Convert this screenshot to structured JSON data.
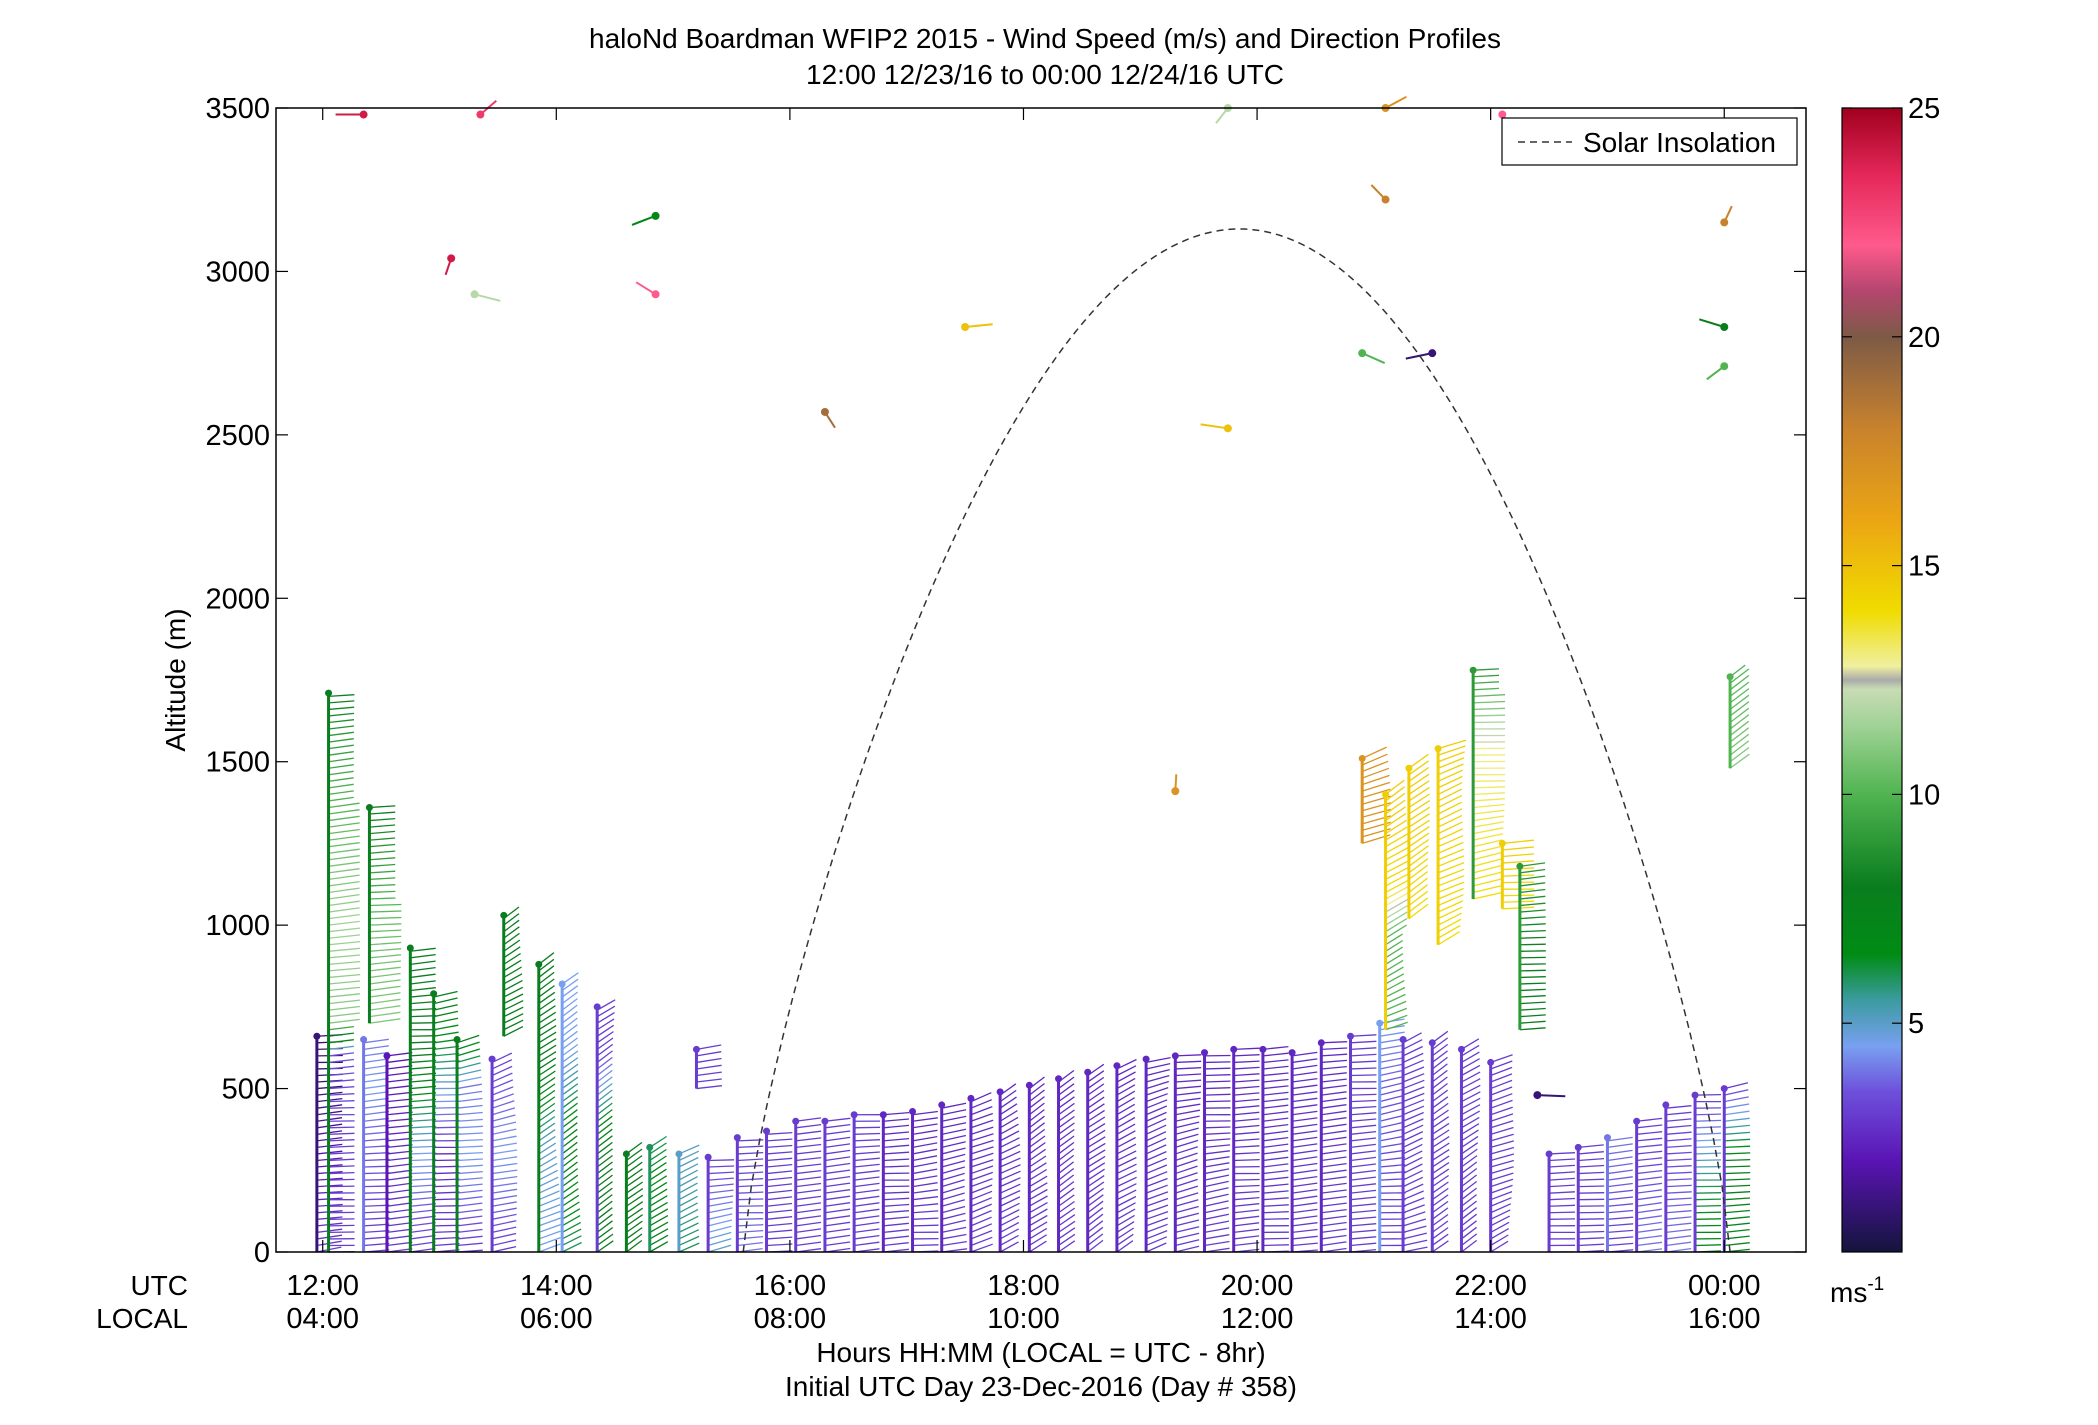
{
  "chart_data": {
    "type": "barb-profile",
    "title": "haloNd Boardman WFIP2 2015 - Wind Speed (m/s) and Direction Profiles",
    "subtitle": "12:00 12/23/16 to 00:00 12/24/16  UTC",
    "xlabel": "Hours HH:MM  (LOCAL = UTC - 8hr)",
    "xlabel2": "Initial UTC Day 23-Dec-2016 (Day # 358)",
    "ylabel": "Altitude (m)",
    "xlim": [
      11.6,
      24.7
    ],
    "ylim": [
      0,
      3500
    ],
    "yticks": [
      0,
      500,
      1000,
      1500,
      2000,
      2500,
      3000,
      3500
    ],
    "xticks": [
      {
        "utc_hour": 12,
        "utc": "12:00",
        "local": "04:00"
      },
      {
        "utc_hour": 14,
        "utc": "14:00",
        "local": "06:00"
      },
      {
        "utc_hour": 16,
        "utc": "16:00",
        "local": "08:00"
      },
      {
        "utc_hour": 18,
        "utc": "18:00",
        "local": "10:00"
      },
      {
        "utc_hour": 20,
        "utc": "20:00",
        "local": "12:00"
      },
      {
        "utc_hour": 22,
        "utc": "22:00",
        "local": "14:00"
      },
      {
        "utc_hour": 24,
        "utc": "00:00",
        "local": "16:00"
      }
    ],
    "row_labels": {
      "utc": "UTC",
      "local": "LOCAL"
    },
    "legend": {
      "entries": [
        "Solar Insolation"
      ],
      "placement": "top-right"
    },
    "solar_insolation": {
      "start_hour": 15.6,
      "peak_hour": 19.85,
      "end_hour": 24.05,
      "peak_altitude": 3130
    },
    "colorbar": {
      "min": 0,
      "max": 25,
      "ticks": [
        5,
        10,
        15,
        20,
        25
      ],
      "unit": "ms",
      "unit_exp": "-1",
      "stops": [
        {
          "v": 0,
          "c": "#14143c"
        },
        {
          "v": 2,
          "c": "#5a14b4"
        },
        {
          "v": 3.5,
          "c": "#6e50dc"
        },
        {
          "v": 4.5,
          "c": "#78a0f0"
        },
        {
          "v": 5.5,
          "c": "#3c9ba0"
        },
        {
          "v": 6.5,
          "c": "#008c14"
        },
        {
          "v": 8,
          "c": "#0a7d1e"
        },
        {
          "v": 10,
          "c": "#50b450"
        },
        {
          "v": 11.5,
          "c": "#a0d296"
        },
        {
          "v": 12.3,
          "c": "#c8dcb4"
        },
        {
          "v": 12.5,
          "c": "#aaaaaa"
        },
        {
          "v": 12.8,
          "c": "#f0f0a0"
        },
        {
          "v": 14,
          "c": "#f0dc00"
        },
        {
          "v": 16,
          "c": "#eba514"
        },
        {
          "v": 18,
          "c": "#c8822d"
        },
        {
          "v": 20,
          "c": "#7d5a46"
        },
        {
          "v": 21,
          "c": "#b4466e"
        },
        {
          "v": 22,
          "c": "#ff5a8c"
        },
        {
          "v": 23.5,
          "c": "#e6285a"
        },
        {
          "v": 25,
          "c": "#a0001e"
        }
      ]
    },
    "columns": [
      {
        "t": 11.95,
        "top": 660,
        "spd": [
          [
            0,
            3
          ],
          [
            300,
            2
          ],
          [
            500,
            1
          ],
          [
            660,
            1
          ]
        ]
      },
      {
        "t": 12.05,
        "top": 1710,
        "spd": [
          [
            0,
            3
          ],
          [
            300,
            3
          ],
          [
            600,
            3.5
          ],
          [
            700,
            11
          ],
          [
            1000,
            11.5
          ],
          [
            1500,
            9.5
          ],
          [
            1710,
            8
          ]
        ]
      },
      {
        "t": 12.35,
        "top": 650,
        "spd": [
          [
            0,
            3
          ],
          [
            300,
            3.5
          ],
          [
            500,
            4.5
          ],
          [
            650,
            4
          ]
        ]
      },
      {
        "t": 12.4,
        "top": 1360,
        "spd": [
          [
            700,
            11
          ],
          [
            1000,
            10.5
          ],
          [
            1360,
            8
          ]
        ]
      },
      {
        "t": 12.55,
        "top": 600,
        "spd": [
          [
            0,
            3
          ],
          [
            300,
            2.5
          ],
          [
            600,
            2
          ]
        ]
      },
      {
        "t": 12.75,
        "top": 930,
        "spd": [
          [
            0,
            3
          ],
          [
            300,
            4.5
          ],
          [
            600,
            8
          ],
          [
            930,
            8
          ]
        ]
      },
      {
        "t": 12.95,
        "top": 790,
        "spd": [
          [
            0,
            3
          ],
          [
            300,
            2.5
          ],
          [
            600,
            6
          ],
          [
            790,
            8
          ]
        ]
      },
      {
        "t": 13.15,
        "top": 650,
        "spd": [
          [
            0,
            3
          ],
          [
            300,
            4.5
          ],
          [
            500,
            4
          ],
          [
            650,
            8
          ]
        ]
      },
      {
        "t": 13.45,
        "top": 590,
        "spd": [
          [
            0,
            3
          ],
          [
            300,
            4.5
          ],
          [
            590,
            3
          ]
        ]
      },
      {
        "t": 13.55,
        "top": 1030,
        "spd": [
          [
            660,
            8
          ],
          [
            1030,
            8
          ]
        ]
      },
      {
        "t": 13.85,
        "top": 880,
        "spd": [
          [
            0,
            4.5
          ],
          [
            300,
            5
          ],
          [
            600,
            8
          ],
          [
            880,
            8
          ]
        ]
      },
      {
        "t": 14.05,
        "top": 820,
        "spd": [
          [
            0,
            6
          ],
          [
            300,
            7.5
          ],
          [
            600,
            4.5
          ],
          [
            820,
            4.5
          ]
        ]
      },
      {
        "t": 14.35,
        "top": 750,
        "spd": [
          [
            0,
            8
          ],
          [
            300,
            8
          ],
          [
            600,
            3
          ],
          [
            750,
            3
          ]
        ]
      },
      {
        "t": 14.6,
        "top": 300,
        "spd": [
          [
            0,
            8
          ],
          [
            300,
            8
          ]
        ]
      },
      {
        "t": 14.8,
        "top": 320,
        "spd": [
          [
            0,
            8
          ],
          [
            320,
            6
          ]
        ]
      },
      {
        "t": 15.05,
        "top": 300,
        "spd": [
          [
            0,
            6
          ],
          [
            300,
            5
          ]
        ]
      },
      {
        "t": 15.2,
        "top": 620,
        "spd": [
          [
            500,
            3
          ],
          [
            620,
            3
          ]
        ]
      },
      {
        "t": 15.3,
        "top": 290,
        "spd": [
          [
            0,
            5
          ],
          [
            290,
            3
          ]
        ]
      },
      {
        "t": 15.55,
        "top": 350,
        "spd": [
          [
            0,
            4
          ],
          [
            350,
            3
          ]
        ]
      },
      {
        "t": 15.8,
        "top": 370,
        "spd": [
          [
            0,
            3
          ],
          [
            370,
            3
          ]
        ]
      },
      {
        "t": 16.05,
        "top": 400,
        "spd": [
          [
            0,
            3
          ],
          [
            400,
            3
          ]
        ]
      },
      {
        "t": 16.3,
        "top": 400,
        "spd": [
          [
            0,
            3
          ],
          [
            400,
            3
          ]
        ]
      },
      {
        "t": 16.55,
        "top": 420,
        "spd": [
          [
            0,
            3
          ],
          [
            420,
            3
          ]
        ]
      },
      {
        "t": 16.8,
        "top": 420,
        "spd": [
          [
            0,
            3
          ],
          [
            420,
            2.5
          ]
        ]
      },
      {
        "t": 17.05,
        "top": 430,
        "spd": [
          [
            0,
            3
          ],
          [
            430,
            2.5
          ]
        ]
      },
      {
        "t": 17.3,
        "top": 450,
        "spd": [
          [
            0,
            3
          ],
          [
            450,
            2.5
          ]
        ]
      },
      {
        "t": 17.55,
        "top": 470,
        "spd": [
          [
            0,
            3
          ],
          [
            470,
            2.5
          ]
        ]
      },
      {
        "t": 17.8,
        "top": 490,
        "spd": [
          [
            0,
            3
          ],
          [
            490,
            2.5
          ]
        ]
      },
      {
        "t": 18.05,
        "top": 510,
        "spd": [
          [
            0,
            3
          ],
          [
            510,
            2.5
          ]
        ]
      },
      {
        "t": 18.3,
        "top": 530,
        "spd": [
          [
            0,
            3
          ],
          [
            530,
            2.5
          ]
        ]
      },
      {
        "t": 18.55,
        "top": 550,
        "spd": [
          [
            0,
            3
          ],
          [
            550,
            2.5
          ]
        ]
      },
      {
        "t": 18.8,
        "top": 570,
        "spd": [
          [
            0,
            3
          ],
          [
            570,
            2.5
          ]
        ]
      },
      {
        "t": 19.05,
        "top": 590,
        "spd": [
          [
            0,
            3
          ],
          [
            590,
            2.5
          ]
        ]
      },
      {
        "t": 19.3,
        "top": 600,
        "spd": [
          [
            0,
            3
          ],
          [
            600,
            2.5
          ]
        ]
      },
      {
        "t": 19.55,
        "top": 610,
        "spd": [
          [
            0,
            3
          ],
          [
            610,
            2.5
          ]
        ]
      },
      {
        "t": 19.8,
        "top": 620,
        "spd": [
          [
            0,
            3
          ],
          [
            620,
            2.5
          ]
        ]
      },
      {
        "t": 20.05,
        "top": 620,
        "spd": [
          [
            0,
            3
          ],
          [
            620,
            2.5
          ]
        ]
      },
      {
        "t": 20.3,
        "top": 610,
        "spd": [
          [
            0,
            3
          ],
          [
            610,
            2.5
          ]
        ]
      },
      {
        "t": 20.55,
        "top": 640,
        "spd": [
          [
            0,
            3
          ],
          [
            640,
            2.5
          ]
        ]
      },
      {
        "t": 20.8,
        "top": 660,
        "spd": [
          [
            0,
            3
          ],
          [
            660,
            3
          ]
        ]
      },
      {
        "t": 20.9,
        "top": 1510,
        "spd": [
          [
            1250,
            17
          ],
          [
            1510,
            17
          ]
        ]
      },
      {
        "t": 21.05,
        "top": 700,
        "spd": [
          [
            0,
            3
          ],
          [
            500,
            3.5
          ],
          [
            700,
            4.5
          ]
        ]
      },
      {
        "t": 21.1,
        "top": 1400,
        "spd": [
          [
            680,
            10
          ],
          [
            950,
            10
          ],
          [
            1100,
            14
          ],
          [
            1400,
            14.5
          ]
        ]
      },
      {
        "t": 21.25,
        "top": 650,
        "spd": [
          [
            0,
            3
          ],
          [
            650,
            3
          ]
        ]
      },
      {
        "t": 21.3,
        "top": 1480,
        "spd": [
          [
            1020,
            14
          ],
          [
            1480,
            14.5
          ]
        ]
      },
      {
        "t": 21.5,
        "top": 640,
        "spd": [
          [
            0,
            3
          ],
          [
            640,
            3
          ]
        ]
      },
      {
        "t": 21.55,
        "top": 1540,
        "spd": [
          [
            940,
            14
          ],
          [
            1540,
            14.5
          ]
        ]
      },
      {
        "t": 21.75,
        "top": 620,
        "spd": [
          [
            0,
            3
          ],
          [
            620,
            3
          ]
        ]
      },
      {
        "t": 21.85,
        "top": 1780,
        "spd": [
          [
            1080,
            14
          ],
          [
            1540,
            13
          ],
          [
            1780,
            9
          ]
        ]
      },
      {
        "t": 22.0,
        "top": 580,
        "spd": [
          [
            0,
            3
          ],
          [
            580,
            3
          ]
        ]
      },
      {
        "t": 22.1,
        "top": 1250,
        "spd": [
          [
            1050,
            14
          ],
          [
            1250,
            14.5
          ]
        ]
      },
      {
        "t": 22.25,
        "top": 1180,
        "spd": [
          [
            680,
            8
          ],
          [
            900,
            8
          ],
          [
            1180,
            9
          ]
        ]
      },
      {
        "t": 22.5,
        "top": 300,
        "spd": [
          [
            0,
            3
          ],
          [
            300,
            3
          ]
        ]
      },
      {
        "t": 22.75,
        "top": 320,
        "spd": [
          [
            0,
            3
          ],
          [
            320,
            3
          ]
        ]
      },
      {
        "t": 23.0,
        "top": 350,
        "spd": [
          [
            0,
            3
          ],
          [
            350,
            4
          ]
        ]
      },
      {
        "t": 23.25,
        "top": 400,
        "spd": [
          [
            0,
            4
          ],
          [
            400,
            3
          ]
        ]
      },
      {
        "t": 23.5,
        "top": 450,
        "spd": [
          [
            0,
            4
          ],
          [
            450,
            3
          ]
        ]
      },
      {
        "t": 23.75,
        "top": 480,
        "spd": [
          [
            0,
            7
          ],
          [
            200,
            6
          ],
          [
            480,
            3
          ]
        ]
      },
      {
        "t": 24.0,
        "top": 500,
        "spd": [
          [
            0,
            7
          ],
          [
            250,
            8
          ],
          [
            500,
            3
          ]
        ]
      },
      {
        "t": 24.05,
        "top": 1760,
        "spd": [
          [
            1480,
            11
          ],
          [
            1760,
            10
          ]
        ]
      }
    ],
    "isolated_barbs": [
      {
        "t": 12.35,
        "alt": 3480,
        "spd": 24
      },
      {
        "t": 13.1,
        "alt": 3040,
        "spd": 24
      },
      {
        "t": 13.3,
        "alt": 2930,
        "spd": 12
      },
      {
        "t": 13.35,
        "alt": 3480,
        "spd": 23
      },
      {
        "t": 14.85,
        "alt": 2930,
        "spd": 22
      },
      {
        "t": 14.85,
        "alt": 3170,
        "spd": 7
      },
      {
        "t": 16.3,
        "alt": 2570,
        "spd": 19
      },
      {
        "t": 17.5,
        "alt": 2830,
        "spd": 15
      },
      {
        "t": 19.3,
        "alt": 1410,
        "spd": 17
      },
      {
        "t": 19.75,
        "alt": 2520,
        "spd": 15
      },
      {
        "t": 19.75,
        "alt": 3500,
        "spd": 12
      },
      {
        "t": 20.9,
        "alt": 2750,
        "spd": 10
      },
      {
        "t": 21.1,
        "alt": 3500,
        "spd": 17
      },
      {
        "t": 21.1,
        "alt": 3220,
        "spd": 18
      },
      {
        "t": 21.5,
        "alt": 2750,
        "spd": 1
      },
      {
        "t": 22.1,
        "alt": 3480,
        "spd": 22
      },
      {
        "t": 22.4,
        "alt": 480,
        "spd": 1
      },
      {
        "t": 24.0,
        "alt": 3150,
        "spd": 18
      },
      {
        "t": 24.0,
        "alt": 2830,
        "spd": 8
      },
      {
        "t": 24.0,
        "alt": 2710,
        "spd": 10
      }
    ]
  }
}
